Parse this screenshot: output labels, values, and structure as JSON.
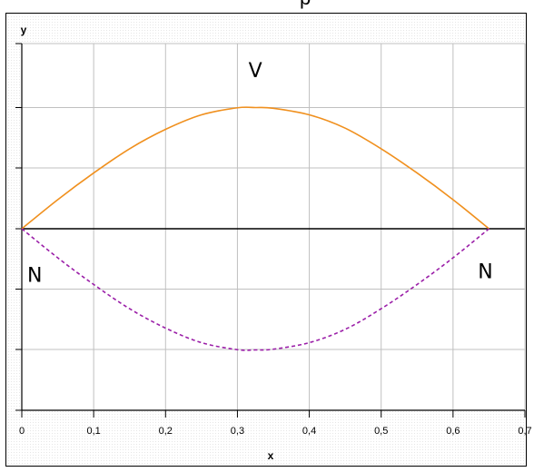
{
  "cropped_heading_fragment": "p",
  "chart_data": {
    "type": "line",
    "xlabel": "x",
    "ylabel": "y",
    "xlim": [
      0,
      0.7
    ],
    "x_ticks": [
      "0",
      "0,1",
      "0,2",
      "0,3",
      "0,4",
      "0,5",
      "0,6",
      "0,7"
    ],
    "y_tick_labels_shown": false,
    "grid": true,
    "axis_line_y": 0,
    "background": "#ffffff",
    "grid_color": "#c0c0c0",
    "series": [
      {
        "name": "V",
        "style": "solid",
        "color": "#f0901e",
        "x": [
          0,
          0.05,
          0.1,
          0.15,
          0.2,
          0.25,
          0.3,
          0.325,
          0.35,
          0.4,
          0.45,
          0.5,
          0.55,
          0.6,
          0.65
        ],
        "y": [
          0,
          0.24,
          0.46,
          0.66,
          0.82,
          0.94,
          0.998,
          1,
          0.994,
          0.94,
          0.83,
          0.66,
          0.46,
          0.24,
          0
        ]
      },
      {
        "name": "N",
        "style": "dashed",
        "color": "#9b1fa8",
        "x": [
          0,
          0.05,
          0.1,
          0.15,
          0.2,
          0.25,
          0.3,
          0.325,
          0.35,
          0.4,
          0.45,
          0.5,
          0.55,
          0.6,
          0.65
        ],
        "y": [
          0,
          -0.24,
          -0.46,
          -0.66,
          -0.82,
          -0.94,
          -0.998,
          -1,
          -0.994,
          -0.94,
          -0.83,
          -0.66,
          -0.46,
          -0.24,
          0
        ]
      }
    ],
    "annotations": [
      {
        "text": "V",
        "x": 0.325,
        "y": 1.25
      },
      {
        "text": "N",
        "x": 0.018,
        "y": -0.44
      },
      {
        "text": "N",
        "x": 0.645,
        "y": -0.41
      }
    ]
  }
}
